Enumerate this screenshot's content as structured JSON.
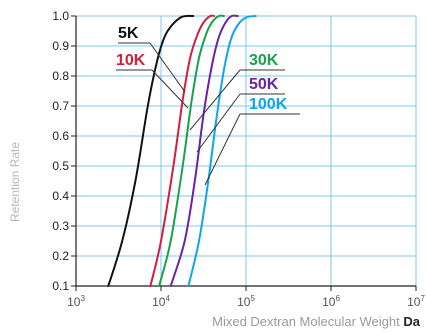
{
  "chart_data": {
    "type": "line",
    "xlabel": "Mixed Dextran Molecular Weight",
    "xlabel_unit": "Da",
    "ylabel": "Retention Rate",
    "x_scale": "log",
    "xlim": [
      1000,
      10000000
    ],
    "ylim": [
      0.1,
      1.0
    ],
    "grid": true,
    "x_ticks": [
      1000,
      10000,
      100000,
      1000000,
      10000000
    ],
    "x_tick_labels": [
      {
        "base": "10",
        "exp": "3"
      },
      {
        "base": "10",
        "exp": "4"
      },
      {
        "base": "10",
        "exp": "5"
      },
      {
        "base": "10",
        "exp": "6"
      },
      {
        "base": "10",
        "exp": "7"
      }
    ],
    "y_ticks": [
      0.1,
      0.2,
      0.3,
      0.4,
      0.5,
      0.6,
      0.7,
      0.8,
      0.9,
      1.0
    ],
    "y_tick_labels": [
      "0.1",
      "0.2",
      "0.3",
      "0.4",
      "0.5",
      "0.6",
      "0.7",
      "0.8",
      "0.9",
      "1.0"
    ],
    "series": [
      {
        "name": "5K",
        "color": "#111111",
        "x": [
          2400,
          3500,
          5000,
          7000,
          9000,
          11000,
          13500,
          17000,
          20000,
          24000
        ],
        "y": [
          0.1,
          0.25,
          0.45,
          0.7,
          0.85,
          0.93,
          0.97,
          0.995,
          1.0,
          1.0
        ]
      },
      {
        "name": "10K",
        "color": "#d21f3c",
        "x": [
          7500,
          10000,
          14000,
          18000,
          22000,
          27000,
          32000,
          38000,
          42000
        ],
        "y": [
          0.1,
          0.25,
          0.5,
          0.72,
          0.86,
          0.94,
          0.98,
          1.0,
          1.0
        ]
      },
      {
        "name": "30K",
        "color": "#16a34a",
        "x": [
          9500,
          13000,
          18000,
          23000,
          28000,
          34000,
          40000,
          48000,
          55000
        ],
        "y": [
          0.1,
          0.25,
          0.5,
          0.72,
          0.86,
          0.94,
          0.98,
          1.0,
          1.0
        ]
      },
      {
        "name": "50K",
        "color": "#6b21a8",
        "x": [
          13000,
          19000,
          25000,
          32000,
          40000,
          48000,
          58000,
          68000,
          80000
        ],
        "y": [
          0.1,
          0.25,
          0.45,
          0.68,
          0.84,
          0.93,
          0.98,
          1.0,
          1.0
        ]
      },
      {
        "name": "100K",
        "color": "#0ea5e9",
        "x": [
          21000,
          28000,
          36000,
          45000,
          55000,
          66000,
          80000,
          100000,
          130000
        ],
        "y": [
          0.1,
          0.25,
          0.45,
          0.66,
          0.82,
          0.92,
          0.97,
          0.995,
          1.0
        ]
      }
    ],
    "annotations": [
      {
        "text": "5K",
        "color": "#111111"
      },
      {
        "text": "10K",
        "color": "#d21f3c"
      },
      {
        "text": "30K",
        "color": "#16a34a"
      },
      {
        "text": "50K",
        "color": "#6b21a8"
      },
      {
        "text": "100K",
        "color": "#0ea5e9"
      }
    ]
  }
}
